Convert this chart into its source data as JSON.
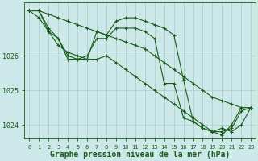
{
  "title": "Graphe pression niveau de la mer (hPa)",
  "background_color": "#cce8e8",
  "plot_bg_color": "#cce8e8",
  "grid_color": "#aacccc",
  "line_color": "#1a5c1a",
  "hours": [
    0,
    1,
    2,
    3,
    4,
    5,
    6,
    7,
    8,
    9,
    10,
    11,
    12,
    13,
    14,
    15,
    16,
    17,
    18,
    19,
    20,
    21,
    22,
    23
  ],
  "series1": [
    1027.3,
    1027.3,
    1027.2,
    1027.1,
    1027.0,
    1026.9,
    1026.8,
    1026.7,
    1026.6,
    1026.5,
    1026.4,
    1026.3,
    1026.2,
    1026.0,
    1025.8,
    1025.6,
    1025.4,
    1025.2,
    1025.0,
    1024.8,
    1024.7,
    1024.6,
    1024.5,
    1024.5
  ],
  "series2": [
    1027.3,
    1027.1,
    1026.7,
    1026.5,
    1026.0,
    1025.9,
    1026.0,
    1026.5,
    1026.5,
    1026.8,
    1026.8,
    1026.8,
    1026.7,
    1026.5,
    1025.2,
    1025.2,
    1024.2,
    1024.1,
    1023.9,
    1023.8,
    1023.8,
    1023.9,
    1024.4,
    1024.5
  ],
  "series3": [
    1027.3,
    1027.3,
    1026.7,
    1026.3,
    1026.1,
    1026.0,
    1025.9,
    1025.9,
    1026.0,
    1025.8,
    1025.6,
    1025.4,
    1025.2,
    1025.0,
    1024.8,
    1024.6,
    1024.4,
    1024.2,
    1024.0,
    1023.8,
    1023.7,
    1024.0,
    1024.5,
    1024.5
  ],
  "series4": [
    1027.3,
    1027.3,
    1026.8,
    1026.5,
    1025.9,
    1025.9,
    1025.9,
    1026.7,
    1026.6,
    1027.0,
    1027.1,
    1027.1,
    1027.0,
    1026.9,
    1026.8,
    1026.6,
    1025.3,
    1024.1,
    1023.9,
    1023.8,
    1023.9,
    1023.8,
    1024.0,
    1024.5
  ],
  "ylim_min": 1023.6,
  "ylim_max": 1027.55,
  "yticks": [
    1024,
    1025,
    1026
  ],
  "xtick_fontsize": 5,
  "ytick_fontsize": 6,
  "title_fontsize": 7
}
